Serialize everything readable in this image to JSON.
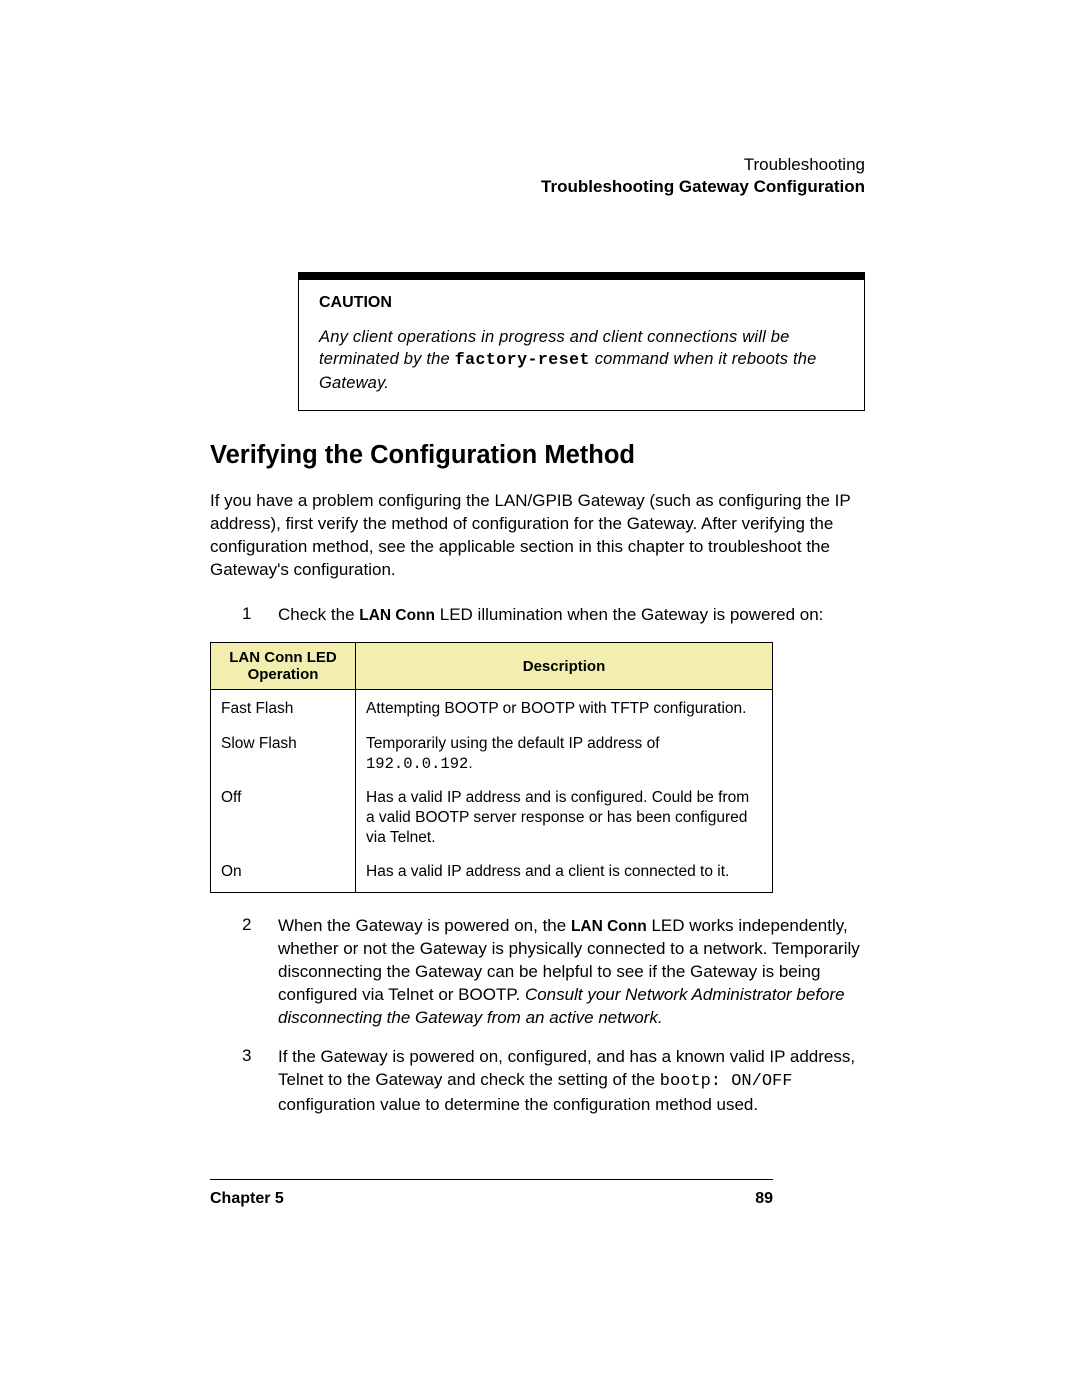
{
  "header": {
    "line1": "Troubleshooting",
    "line2": "Troubleshooting Gateway Configuration"
  },
  "caution": {
    "label": "CAUTION",
    "text_before": "Any client operations in progress and client connections will  be terminated by the ",
    "code": "factory-reset",
    "text_after": " command when it reboots the  Gateway."
  },
  "section_title": "Verifying the Configuration Method",
  "intro_para": "If you have a problem configuring the LAN/GPIB Gateway (such as configuring the IP address), first verify the method of configuration for the Gateway. After verifying the configuration method, see the applicable section in this chapter to troubleshoot the Gateway's configuration.",
  "steps": {
    "1": {
      "num": "1",
      "before_bold": "Check the ",
      "bold": "LAN Conn",
      "after_bold": " LED illumination when the Gateway is powered on:"
    },
    "2": {
      "num": "2",
      "before_bold": "When the Gateway is powered on, the ",
      "bold": "LAN Conn",
      "after_bold": " LED works independently, whether or not the Gateway is physically connected to a network. Temporarily disconnecting the Gateway can be helpful to see if the Gateway is being configured via Telnet or BOOTP. ",
      "italic": "Consult your Network Administrator before disconnecting the Gateway from an active network."
    },
    "3": {
      "num": "3",
      "before_code": "If the Gateway is powered on, configured, and has a known valid IP address, Telnet to the Gateway and check the setting of the ",
      "code": "bootp: ON/OFF",
      "after_code": " configuration value to determine the configuration method used."
    }
  },
  "table": {
    "header_col1_line1": "LAN Conn LED",
    "header_col1_line2": "Operation",
    "header_col2": "Description",
    "rows": [
      {
        "op": "Fast Flash",
        "desc_before": "Attempting BOOTP or BOOTP with TFTP configuration.",
        "code": "",
        "desc_after": ""
      },
      {
        "op": "Slow Flash",
        "desc_before": "Temporarily using the default IP address of ",
        "code": "192.0.0.192",
        "desc_after": "."
      },
      {
        "op": "Off",
        "desc_before": "Has a valid IP address and is configured. Could be from a valid BOOTP server response or has been configured via Telnet.",
        "code": "",
        "desc_after": ""
      },
      {
        "op": "On",
        "desc_before": "Has a valid IP address and a client is connected to it.",
        "code": "",
        "desc_after": ""
      }
    ]
  },
  "footer": {
    "chapter": "Chapter 5",
    "page": "89"
  },
  "colors": {
    "table_header_bg": "#f2eeb0",
    "text": "#000000",
    "bg": "#ffffff"
  }
}
